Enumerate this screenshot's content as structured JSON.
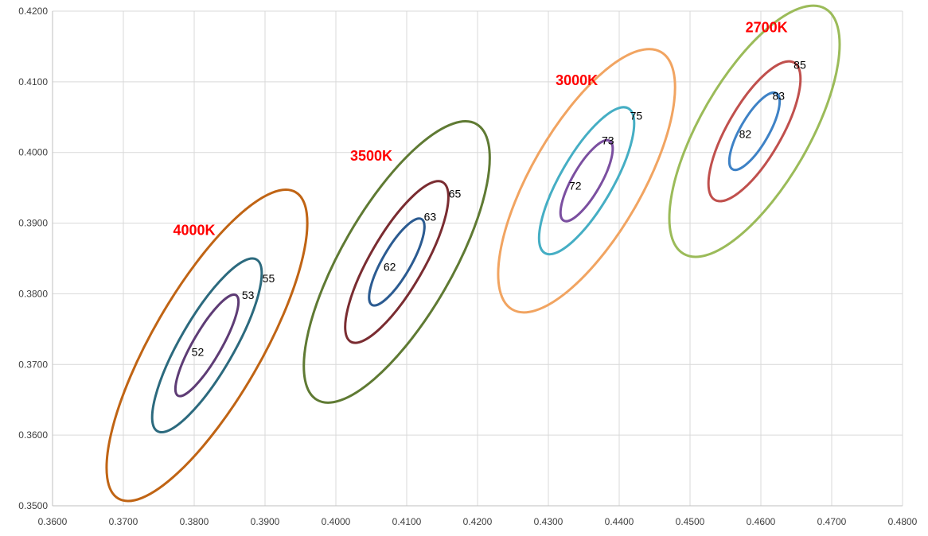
{
  "chart_data": {
    "type": "scatter",
    "title": "",
    "xlabel": "",
    "ylabel": "",
    "xlim": [
      0.36,
      0.48
    ],
    "ylim": [
      0.35,
      0.42
    ],
    "x_ticks": [
      "0.3600",
      "0.3700",
      "0.3800",
      "0.3900",
      "0.4000",
      "0.4100",
      "0.4200",
      "0.4300",
      "0.4400",
      "0.4500",
      "0.4600",
      "0.4700",
      "0.4800"
    ],
    "y_ticks": [
      "0.4200",
      "0.4100",
      "0.4000",
      "0.3900",
      "0.3800",
      "0.3700",
      "0.3600",
      "0.3500"
    ],
    "grid": true,
    "groups": [
      {
        "label": "4000K",
        "label_pos": [
          0.38,
          0.389
        ],
        "center": [
          0.3818,
          0.3727
        ],
        "ellipses": [
          {
            "step": "52",
            "color": "#5e3c75",
            "a": 0.0082,
            "b": 0.002,
            "step_pos": [
              0.3866,
              0.3778
            ]
          },
          {
            "step": "53",
            "color": "#2c6a7e",
            "a": 0.014,
            "b": 0.0038,
            "step_pos": [
              0.3876,
              0.3798
            ]
          },
          {
            "step": "55",
            "color": "#c06414",
            "a": 0.025,
            "b": 0.0077,
            "step_pos": [
              0.3905,
              0.3822
            ]
          }
        ],
        "center_label_pos": [
          0.3805,
          0.3718
        ]
      },
      {
        "label": "3500K",
        "label_pos": [
          0.405,
          0.3995
        ],
        "center": [
          0.4086,
          0.3845
        ],
        "ellipses": [
          {
            "step": "62",
            "color": "#2b5b91",
            "a": 0.007,
            "b": 0.002,
            "step_pos": [
              0.4076,
              0.3838
            ]
          },
          {
            "step": "63",
            "color": "#7a2c31",
            "a": 0.013,
            "b": 0.0038,
            "step_pos": [
              0.4133,
              0.3909
            ]
          },
          {
            "step": "65",
            "color": "#5f7a33",
            "a": 0.0225,
            "b": 0.0078,
            "step_pos": [
              0.4168,
              0.3942
            ]
          }
        ],
        "center_label_pos": [
          0.4076,
          0.3838
        ]
      },
      {
        "label": "3000K",
        "label_pos": [
          0.434,
          0.4102
        ],
        "center": [
          0.4354,
          0.396
        ],
        "ellipses": [
          {
            "step": "72",
            "color": "#7b4fa0",
            "a": 0.0065,
            "b": 0.002,
            "step_pos": [
              0.4338,
              0.3953
            ]
          },
          {
            "step": "73",
            "color": "#45aec4",
            "a": 0.0118,
            "b": 0.0037,
            "step_pos": [
              0.4384,
              0.4017
            ]
          },
          {
            "step": "75",
            "color": "#f1a461",
            "a": 0.021,
            "b": 0.0078,
            "step_pos": [
              0.4424,
              0.4052
            ]
          }
        ],
        "center_label_pos": [
          0.4338,
          0.3953
        ]
      },
      {
        "label": "2700K",
        "label_pos": [
          0.4608,
          0.4177
        ],
        "center": [
          0.4591,
          0.403
        ],
        "ellipses": [
          {
            "step": "82",
            "color": "#3e82c6",
            "a": 0.0062,
            "b": 0.002,
            "step_pos": [
              0.4578,
              0.4026
            ]
          },
          {
            "step": "83",
            "color": "#c0504d",
            "a": 0.0112,
            "b": 0.0038,
            "step_pos": [
              0.4625,
              0.408
            ]
          },
          {
            "step": "85",
            "color": "#9bbb59",
            "a": 0.02,
            "b": 0.0077,
            "step_pos": [
              0.4655,
              0.4124
            ]
          }
        ],
        "center_label_pos": [
          0.4578,
          0.4026
        ]
      }
    ]
  }
}
